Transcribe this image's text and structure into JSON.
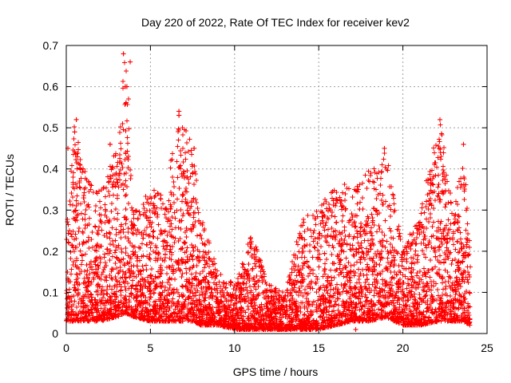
{
  "chart_data": {
    "type": "scatter",
    "title": "Day 220 of 2022, Rate Of TEC Index for receiver kev2",
    "xlabel": "GPS time / hours",
    "ylabel": "ROTI / TECUs",
    "xlim": [
      0,
      25
    ],
    "ylim": [
      0,
      0.7
    ],
    "xticks": [
      0,
      5,
      10,
      15,
      20,
      25
    ],
    "yticks": [
      0,
      0.1,
      0.2,
      0.3,
      0.4,
      0.5,
      0.6,
      0.7
    ],
    "xtick_labels": [
      "0",
      "5",
      "10",
      "15",
      "20",
      "25"
    ],
    "ytick_labels": [
      "0",
      "0.1",
      "0.2",
      "0.3",
      "0.4",
      "0.5",
      "0.6",
      "0.7"
    ],
    "grid": true,
    "legend": "none",
    "marker": "plus",
    "color": "#ff0000",
    "series": [
      {
        "values_note": "dense cloud of ROTI samples over 0–24 h",
        "envelope": [
          {
            "x": 0.0,
            "low": 0.03,
            "high": 0.25
          },
          {
            "x": 0.5,
            "low": 0.03,
            "high": 0.52
          },
          {
            "x": 1.0,
            "low": 0.03,
            "high": 0.4
          },
          {
            "x": 2.0,
            "low": 0.03,
            "high": 0.35
          },
          {
            "x": 3.0,
            "low": 0.04,
            "high": 0.45
          },
          {
            "x": 3.5,
            "low": 0.05,
            "high": 0.68
          },
          {
            "x": 4.0,
            "low": 0.04,
            "high": 0.3
          },
          {
            "x": 5.0,
            "low": 0.03,
            "high": 0.35
          },
          {
            "x": 6.0,
            "low": 0.03,
            "high": 0.38
          },
          {
            "x": 6.8,
            "low": 0.03,
            "high": 0.54
          },
          {
            "x": 7.5,
            "low": 0.03,
            "high": 0.45
          },
          {
            "x": 8.0,
            "low": 0.02,
            "high": 0.3
          },
          {
            "x": 9.0,
            "low": 0.02,
            "high": 0.15
          },
          {
            "x": 10.0,
            "low": 0.01,
            "high": 0.12
          },
          {
            "x": 11.0,
            "low": 0.01,
            "high": 0.25
          },
          {
            "x": 12.0,
            "low": 0.01,
            "high": 0.12
          },
          {
            "x": 13.0,
            "low": 0.01,
            "high": 0.1
          },
          {
            "x": 14.0,
            "low": 0.01,
            "high": 0.28
          },
          {
            "x": 15.0,
            "low": 0.01,
            "high": 0.3
          },
          {
            "x": 16.0,
            "low": 0.02,
            "high": 0.38
          },
          {
            "x": 17.0,
            "low": 0.03,
            "high": 0.35
          },
          {
            "x": 18.0,
            "low": 0.03,
            "high": 0.4
          },
          {
            "x": 19.0,
            "low": 0.04,
            "high": 0.45
          },
          {
            "x": 20.0,
            "low": 0.02,
            "high": 0.2
          },
          {
            "x": 21.0,
            "low": 0.02,
            "high": 0.3
          },
          {
            "x": 22.2,
            "low": 0.03,
            "high": 0.52
          },
          {
            "x": 23.0,
            "low": 0.03,
            "high": 0.3
          },
          {
            "x": 23.6,
            "low": 0.03,
            "high": 0.46
          },
          {
            "x": 24.0,
            "low": 0.02,
            "high": 0.2
          }
        ],
        "outliers": [
          {
            "x": 3.4,
            "y": 0.68
          },
          {
            "x": 3.8,
            "y": 0.66
          },
          {
            "x": 3.5,
            "y": 0.6
          },
          {
            "x": 3.6,
            "y": 0.6
          },
          {
            "x": 3.7,
            "y": 0.57
          },
          {
            "x": 6.7,
            "y": 0.54
          },
          {
            "x": 6.7,
            "y": 0.53
          },
          {
            "x": 0.6,
            "y": 0.52
          },
          {
            "x": 0.5,
            "y": 0.49
          },
          {
            "x": 22.2,
            "y": 0.52
          },
          {
            "x": 23.6,
            "y": 0.46
          },
          {
            "x": 7.6,
            "y": 0.45
          },
          {
            "x": 0.1,
            "y": 0.45
          },
          {
            "x": 18.9,
            "y": 0.45
          },
          {
            "x": 1.0,
            "y": 0.4
          },
          {
            "x": 2.6,
            "y": 0.46
          },
          {
            "x": 17.2,
            "y": 0.01
          }
        ]
      }
    ]
  }
}
